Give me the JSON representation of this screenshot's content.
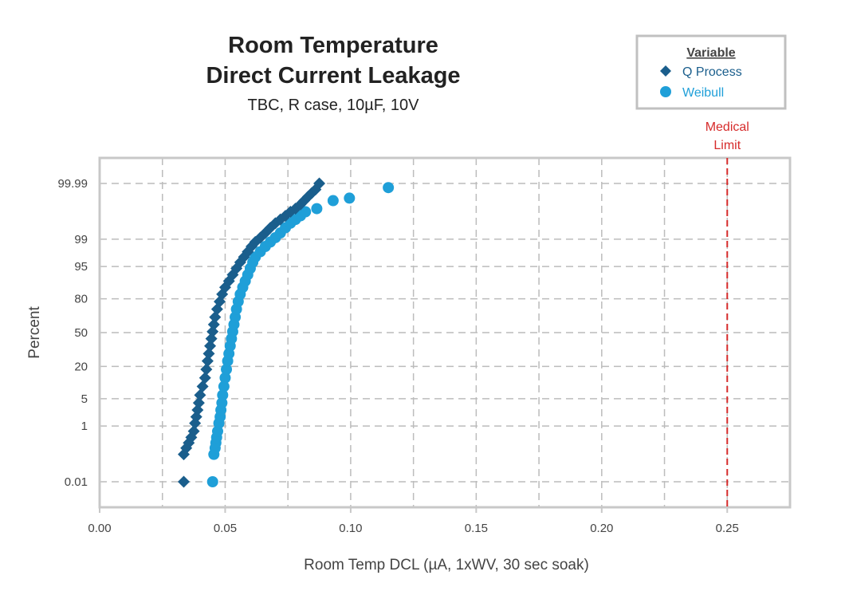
{
  "chart_data": {
    "type": "scatter",
    "title_line1": "Room Temperature",
    "title_line2": "Direct Current Leakage",
    "subtitle": "TBC, R case, 10µF, 10V",
    "xlabel": "Room Temp DCL (µA, 1xWV, 30 sec soak)",
    "ylabel": "Percent",
    "xlim": [
      0,
      0.275
    ],
    "x_scale": "linear",
    "y_scale": "probability",
    "x_ticks": [
      0,
      0.05,
      0.1,
      0.15,
      0.2,
      0.25
    ],
    "x_tick_labels": [
      "0.00",
      "0.05",
      "0.10",
      "0.15",
      "0.20",
      "0.25"
    ],
    "y_ticks": [
      0.01,
      1,
      5,
      20,
      50,
      80,
      95,
      99,
      99.99
    ],
    "y_tick_labels": [
      "0.01",
      "1",
      "5",
      "20",
      "50",
      "80",
      "95",
      "99",
      "99.99"
    ],
    "grid": true,
    "legend": {
      "title": "Variable",
      "position": "top-right"
    },
    "annotation": {
      "line1": "Medical",
      "line2": "Limit",
      "x": 0.25,
      "color": "#d62b2b"
    },
    "series": [
      {
        "name": "Q Process",
        "marker": "diamond",
        "color": "#1a5e8c",
        "points": [
          [
            0.0335,
            0.01
          ],
          [
            0.0335,
            0.12
          ],
          [
            0.0345,
            0.2
          ],
          [
            0.0355,
            0.3
          ],
          [
            0.0365,
            0.45
          ],
          [
            0.0375,
            0.7
          ],
          [
            0.038,
            1.2
          ],
          [
            0.0385,
            1.8
          ],
          [
            0.039,
            2.7
          ],
          [
            0.0395,
            4.0
          ],
          [
            0.04,
            6.0
          ],
          [
            0.041,
            9.0
          ],
          [
            0.042,
            13.0
          ],
          [
            0.0425,
            18.0
          ],
          [
            0.043,
            24.0
          ],
          [
            0.0435,
            30.0
          ],
          [
            0.044,
            37.0
          ],
          [
            0.0445,
            44.0
          ],
          [
            0.045,
            51.0
          ],
          [
            0.0455,
            58.0
          ],
          [
            0.046,
            65.0
          ],
          [
            0.0468,
            72.0
          ],
          [
            0.0478,
            78.0
          ],
          [
            0.0488,
            83.0
          ],
          [
            0.05,
            87.0
          ],
          [
            0.0515,
            90.0
          ],
          [
            0.053,
            92.5
          ],
          [
            0.0545,
            94.5
          ],
          [
            0.056,
            96.0
          ],
          [
            0.0575,
            97.0
          ],
          [
            0.059,
            97.8
          ],
          [
            0.0605,
            98.4
          ],
          [
            0.062,
            98.8
          ],
          [
            0.064,
            99.1
          ],
          [
            0.066,
            99.35
          ],
          [
            0.068,
            99.55
          ],
          [
            0.07,
            99.68
          ],
          [
            0.072,
            99.76
          ],
          [
            0.074,
            99.82
          ],
          [
            0.076,
            99.87
          ],
          [
            0.078,
            99.9
          ],
          [
            0.08,
            99.93
          ],
          [
            0.0815,
            99.95
          ],
          [
            0.083,
            99.965
          ],
          [
            0.0845,
            99.975
          ],
          [
            0.086,
            99.982
          ],
          [
            0.0875,
            99.99
          ]
        ]
      },
      {
        "name": "Weibull",
        "marker": "circle",
        "color": "#1f9fd8",
        "points": [
          [
            0.045,
            0.01
          ],
          [
            0.0455,
            0.12
          ],
          [
            0.046,
            0.2
          ],
          [
            0.0463,
            0.3
          ],
          [
            0.0466,
            0.45
          ],
          [
            0.047,
            0.7
          ],
          [
            0.0475,
            1.2
          ],
          [
            0.048,
            1.8
          ],
          [
            0.0483,
            2.7
          ],
          [
            0.0487,
            4.0
          ],
          [
            0.049,
            6.0
          ],
          [
            0.0495,
            9.0
          ],
          [
            0.05,
            13.0
          ],
          [
            0.0505,
            18.0
          ],
          [
            0.051,
            24.0
          ],
          [
            0.0515,
            30.0
          ],
          [
            0.052,
            37.0
          ],
          [
            0.0525,
            44.0
          ],
          [
            0.053,
            51.0
          ],
          [
            0.0535,
            58.0
          ],
          [
            0.054,
            65.0
          ],
          [
            0.0545,
            72.0
          ],
          [
            0.0552,
            78.0
          ],
          [
            0.056,
            83.0
          ],
          [
            0.057,
            87.0
          ],
          [
            0.058,
            90.0
          ],
          [
            0.059,
            92.5
          ],
          [
            0.06,
            94.5
          ],
          [
            0.061,
            96.0
          ],
          [
            0.062,
            97.0
          ],
          [
            0.064,
            97.8
          ],
          [
            0.066,
            98.4
          ],
          [
            0.068,
            98.8
          ],
          [
            0.07,
            99.1
          ],
          [
            0.072,
            99.35
          ],
          [
            0.074,
            99.55
          ],
          [
            0.076,
            99.68
          ],
          [
            0.078,
            99.76
          ],
          [
            0.08,
            99.82
          ],
          [
            0.082,
            99.87
          ],
          [
            0.0865,
            99.9
          ],
          [
            0.093,
            99.95
          ],
          [
            0.0995,
            99.96
          ],
          [
            0.115,
            99.985
          ]
        ]
      }
    ]
  }
}
